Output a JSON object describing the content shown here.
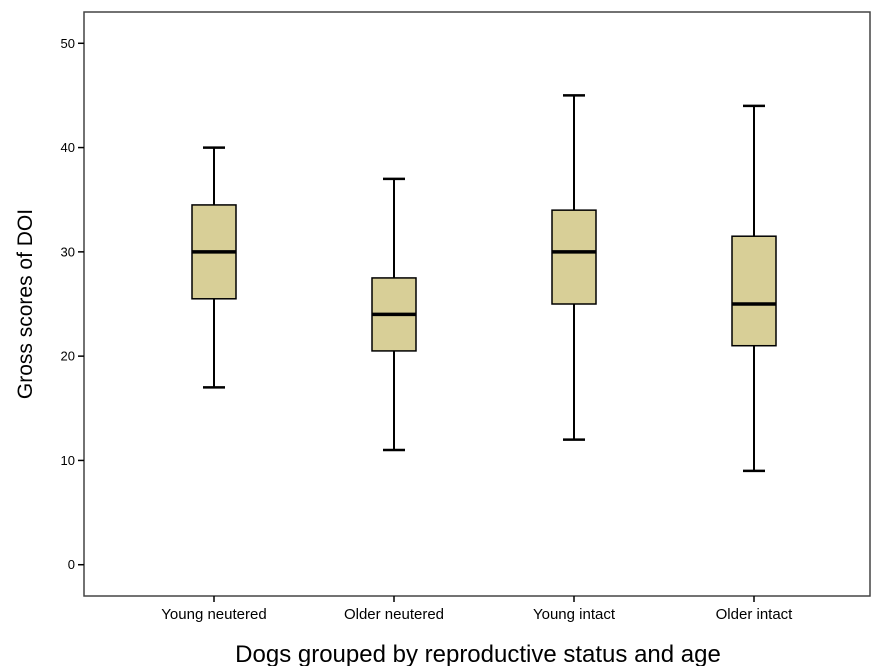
{
  "chart_data": {
    "type": "boxplot",
    "xlabel": "Dogs grouped by reproductive status and age",
    "ylabel": "Gross scores of DOI",
    "ylim": [
      -3,
      53
    ],
    "yticks": [
      0,
      10,
      20,
      30,
      40,
      50
    ],
    "categories": [
      "Young neutered",
      "Older neutered",
      "Young intact",
      "Older intact"
    ],
    "boxes": [
      {
        "category": "Young neutered",
        "min": 17,
        "q1": 25.5,
        "median": 30,
        "q3": 34.5,
        "max": 40
      },
      {
        "category": "Older neutered",
        "min": 11,
        "q1": 20.5,
        "median": 24,
        "q3": 27.5,
        "max": 37
      },
      {
        "category": "Young intact",
        "min": 12,
        "q1": 25,
        "median": 30,
        "q3": 34,
        "max": 45
      },
      {
        "category": "Older intact",
        "min": 9,
        "q1": 21,
        "median": 25,
        "q3": 31.5,
        "max": 44
      }
    ],
    "box_color": "#d8cf97",
    "grid": false,
    "legend": "none"
  }
}
